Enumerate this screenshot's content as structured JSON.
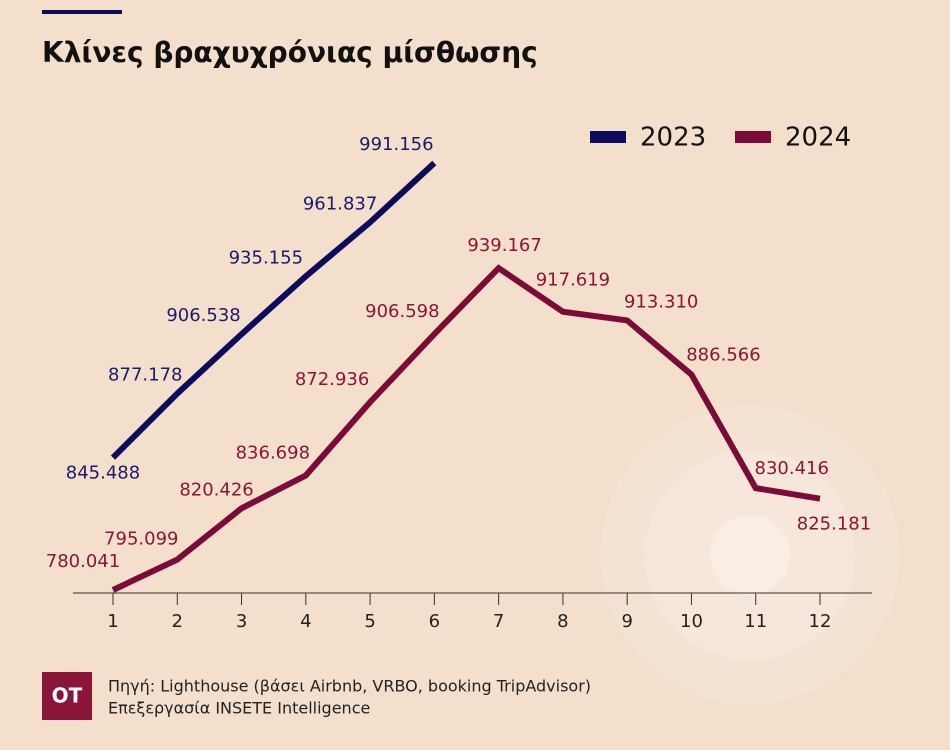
{
  "chart_data": {
    "type": "line",
    "title": "Κλίνες βραχυχρόνιας μίσθωσης",
    "categories": [
      "1",
      "2",
      "3",
      "4",
      "5",
      "6",
      "7",
      "8",
      "9",
      "10",
      "11",
      "12"
    ],
    "series": [
      {
        "name": "2023",
        "color": "#0c0c5c",
        "values": [
          845488,
          877178,
          906538,
          935155,
          961837,
          991156,
          null,
          null,
          null,
          null,
          null,
          null
        ],
        "value_labels": [
          "845.488",
          "877.178",
          "906.538",
          "935.155",
          "961.837",
          "991.156",
          null,
          null,
          null,
          null,
          null,
          null
        ]
      },
      {
        "name": "2024",
        "color": "#7b0c37",
        "values": [
          780041,
          795099,
          820426,
          836698,
          872936,
          906598,
          939167,
          917619,
          913310,
          886566,
          830416,
          825181
        ],
        "value_labels": [
          "780.041",
          "795.099",
          "820.426",
          "836.698",
          "872.936",
          "906.598",
          "939.167",
          "917.619",
          "913.310",
          "886.566",
          "830.416",
          "825.181"
        ]
      }
    ],
    "logo": "OT",
    "source": "Πηγή: Lighthouse (βάσει Airbnb, VRBO, booking TripAdvisor)",
    "credit": "Επεξεργασία INSETE Intelligence"
  }
}
